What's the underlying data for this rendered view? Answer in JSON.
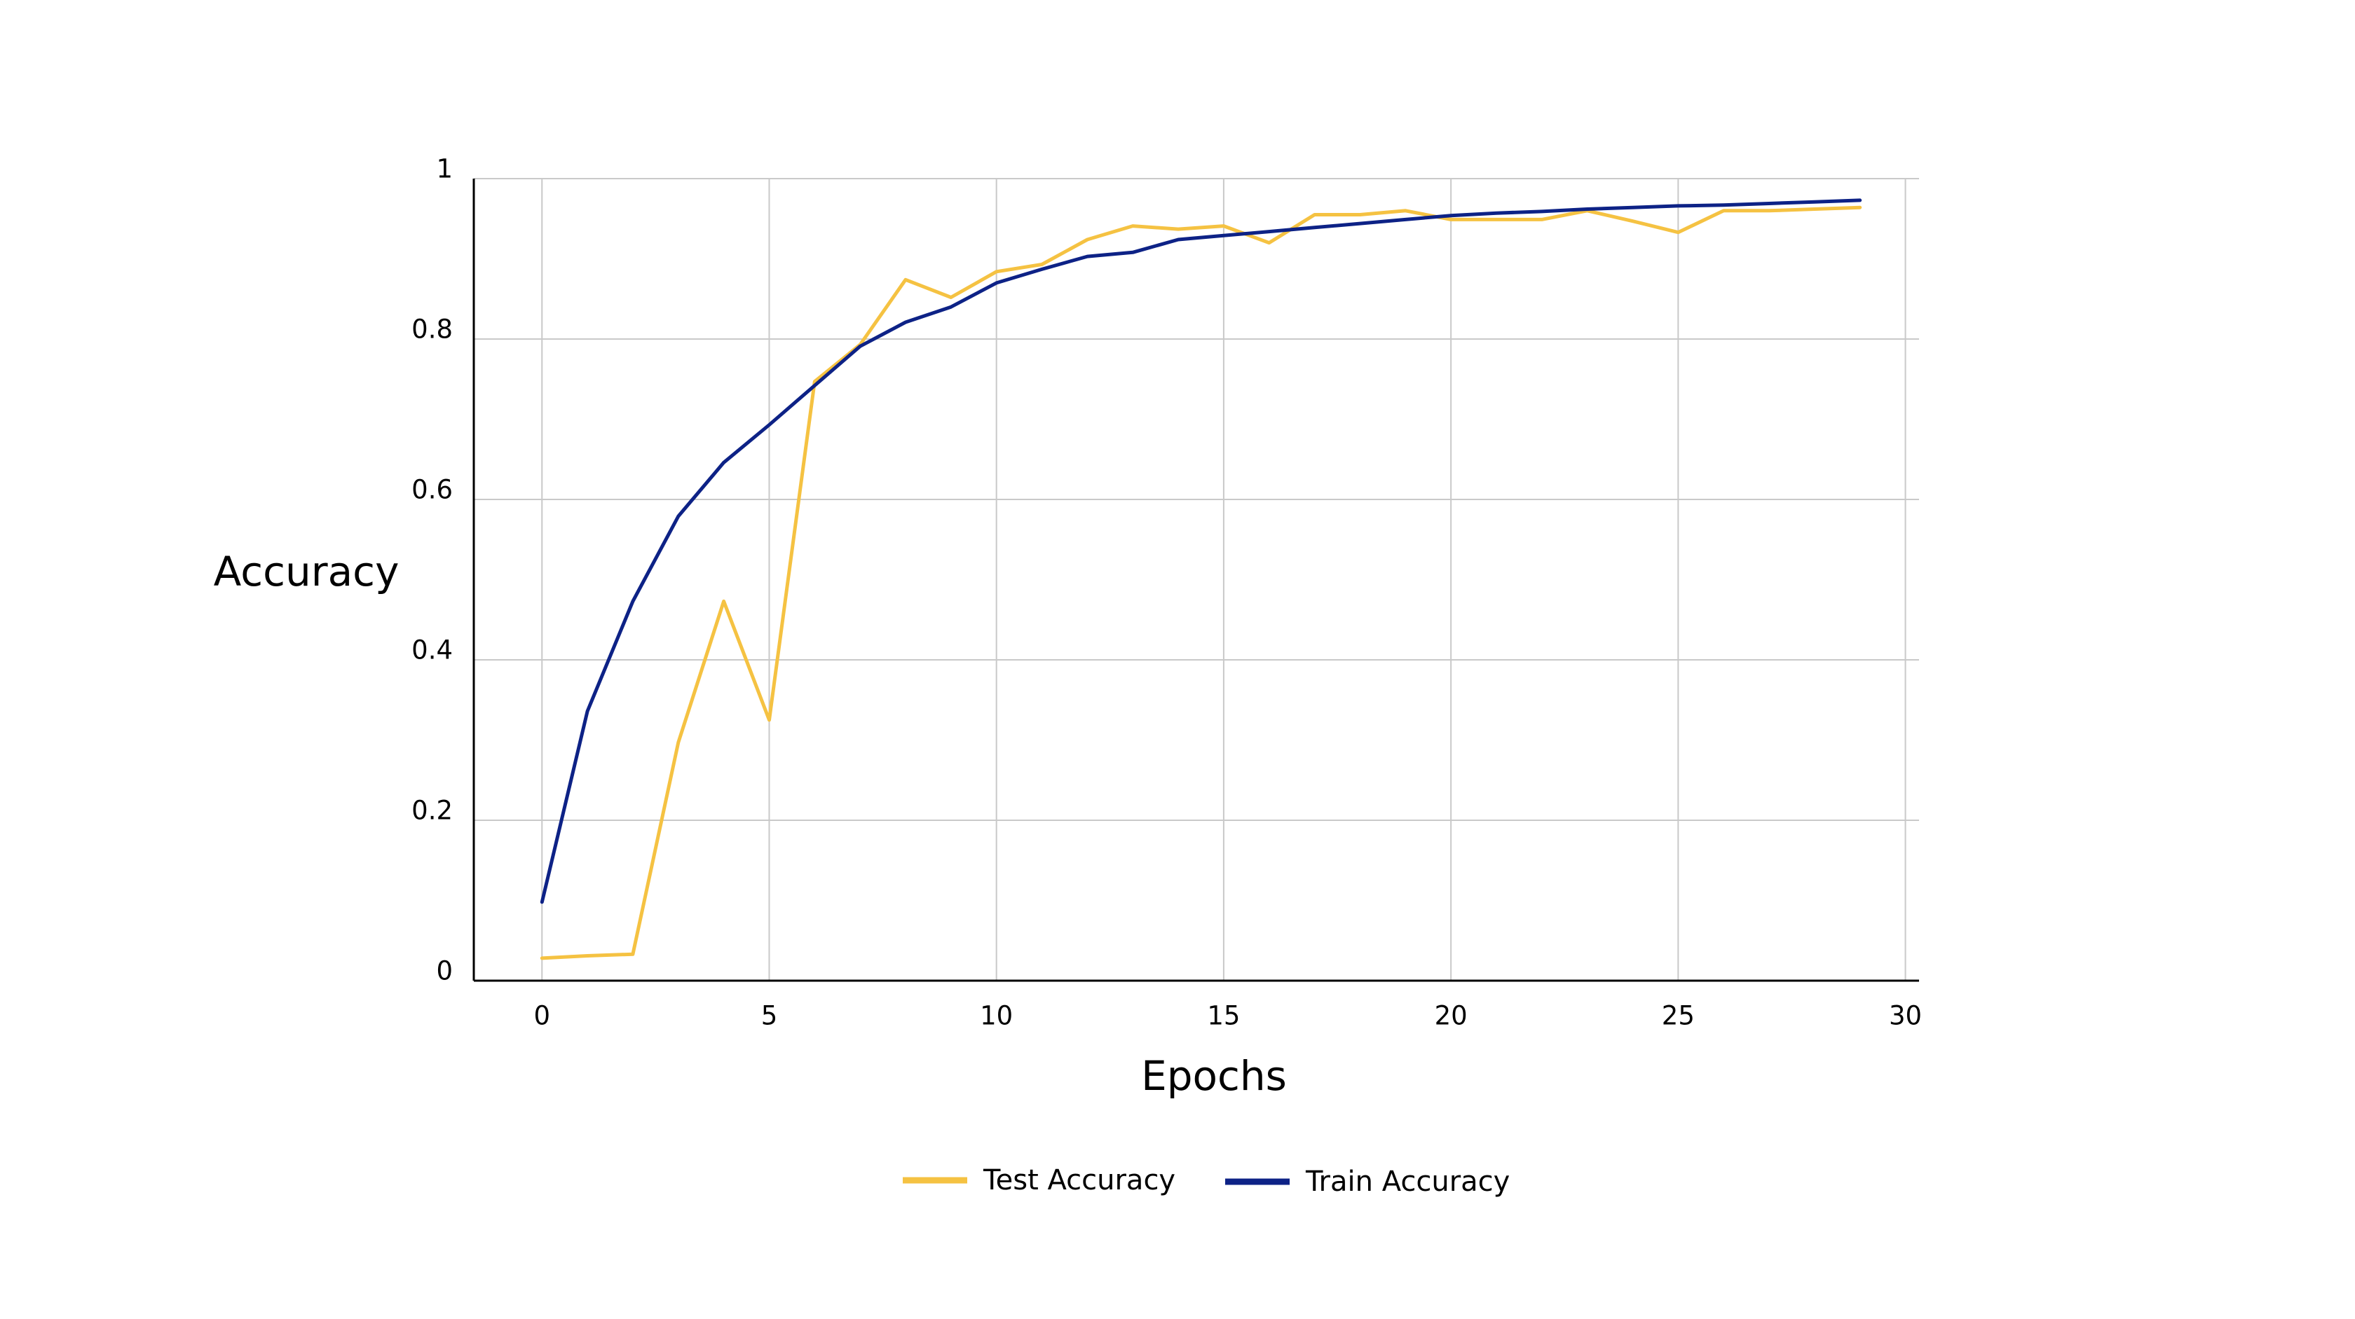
{
  "chart_data": {
    "type": "line",
    "title": "",
    "xlabel": "Epochs",
    "ylabel": "Accuracy",
    "xlim": [
      -1.5,
      30.3
    ],
    "ylim": [
      0,
      1
    ],
    "xticks": [
      0,
      5,
      10,
      15,
      20,
      25,
      30
    ],
    "yticks": [
      0,
      0.2,
      0.4,
      0.6,
      0.8,
      1
    ],
    "ytick_labels": [
      "0",
      "0.2",
      "0.4",
      "0.6",
      "0.8",
      "1"
    ],
    "grid": true,
    "legend_position": "bottom-center",
    "series": [
      {
        "name": "Test Accuracy",
        "color": "#F5C242",
        "x": [
          0,
          1,
          2,
          3,
          4,
          5,
          6,
          7,
          8,
          9,
          10,
          11,
          12,
          13,
          14,
          15,
          16,
          17,
          18,
          19,
          20,
          21,
          22,
          23,
          24,
          25,
          26,
          27,
          28,
          29
        ],
        "values": [
          0.028,
          0.031,
          0.033,
          0.297,
          0.473,
          0.325,
          0.747,
          0.793,
          0.874,
          0.852,
          0.884,
          0.893,
          0.924,
          0.941,
          0.937,
          0.941,
          0.92,
          0.955,
          0.955,
          0.96,
          0.949,
          0.949,
          0.949,
          0.96,
          0.947,
          0.933,
          0.96,
          0.96,
          0.962,
          0.964
        ]
      },
      {
        "name": "Train Accuracy",
        "color": "#0D2286",
        "x": [
          0,
          1,
          2,
          3,
          4,
          5,
          6,
          7,
          8,
          9,
          10,
          11,
          12,
          13,
          14,
          15,
          16,
          17,
          18,
          19,
          20,
          21,
          22,
          23,
          24,
          25,
          26,
          27,
          28,
          29
        ],
        "values": [
          0.098,
          0.336,
          0.473,
          0.579,
          0.646,
          0.693,
          0.742,
          0.791,
          0.821,
          0.84,
          0.87,
          0.887,
          0.903,
          0.908,
          0.924,
          0.929,
          0.934,
          0.939,
          0.944,
          0.949,
          0.954,
          0.957,
          0.959,
          0.962,
          0.964,
          0.966,
          0.967,
          0.969,
          0.971,
          0.973
        ]
      }
    ]
  }
}
